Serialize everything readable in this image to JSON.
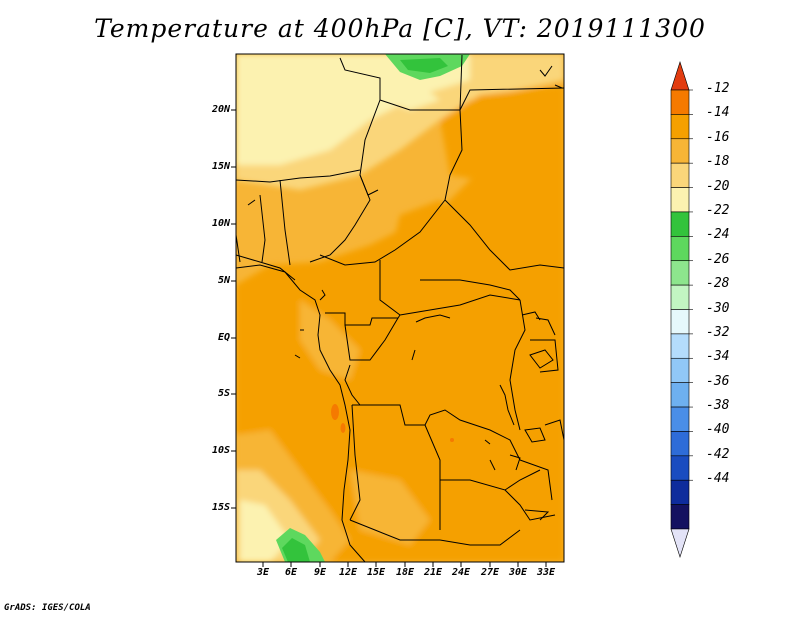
{
  "title": "Temperature at 400hPa [C], VT: 2019111300",
  "footer": "GrADS: IGES/COLA",
  "map": {
    "lat_ticks": [
      "20N",
      "15N",
      "10N",
      "5N",
      "EQ",
      "5S",
      "10S",
      "15S"
    ],
    "lon_ticks": [
      "3E",
      "6E",
      "9E",
      "12E",
      "15E",
      "18E",
      "21E",
      "24E",
      "27E",
      "30E",
      "33E"
    ]
  },
  "colorbar": {
    "labels": [
      "-12",
      "-14",
      "-16",
      "-18",
      "-20",
      "-22",
      "-24",
      "-26",
      "-28",
      "-30",
      "-32",
      "-34",
      "-36",
      "-38",
      "-40",
      "-42",
      "-44"
    ],
    "colors": [
      "#e23c10",
      "#f57a00",
      "#f5a000",
      "#f7b536",
      "#fad67a",
      "#fcf2b0",
      "#33c33c",
      "#5ed85e",
      "#8de58d",
      "#c2f5c2",
      "#e6f8fc",
      "#b4dcfc",
      "#91c8f7",
      "#6eb0f0",
      "#4a8ee8",
      "#2e6cd8",
      "#1a4cc0",
      "#0e2c9c",
      "#141260",
      "#e3e3f7"
    ]
  }
}
